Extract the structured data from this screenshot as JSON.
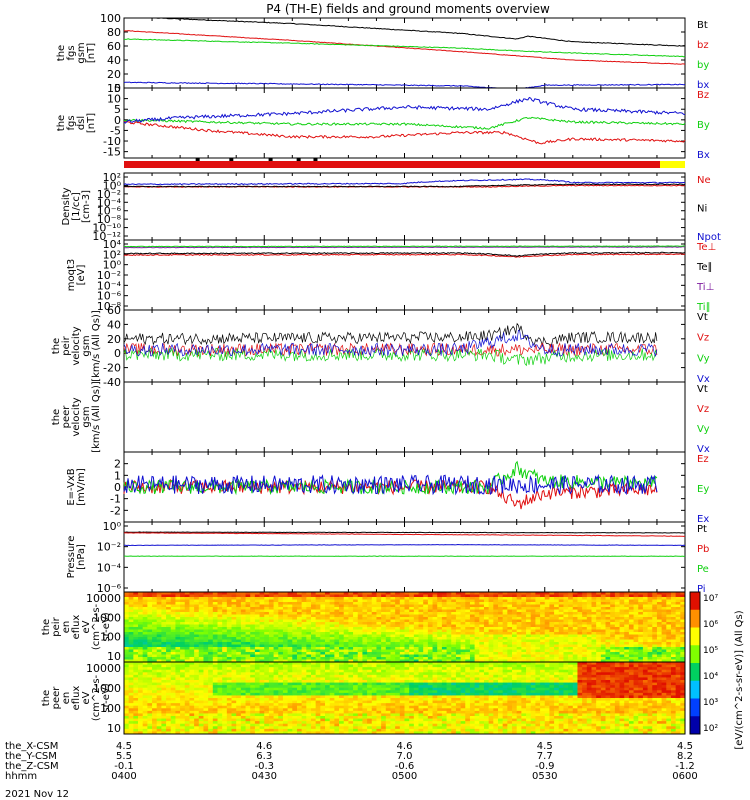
{
  "title": "P4 (TH-E) fields and ground moments overview",
  "date": "2021 Nov 12",
  "colors": {
    "black": "#000000",
    "red": "#e01010",
    "green": "#10d010",
    "blue": "#1010d0",
    "yellow": "#ffff00",
    "purple": "#8020a0",
    "white": "#ffffff"
  },
  "chart_data": [
    {
      "type": "line",
      "panel": "fgs_gsm_mag",
      "ylabel": [
        "the",
        "fgs",
        "gsm",
        "[nT]"
      ],
      "ylim": [
        0,
        100
      ],
      "yticks": [
        "100",
        "80",
        "60",
        "40",
        "20",
        "0"
      ],
      "series": [
        {
          "name": "Bt",
          "color": "black",
          "shape": [
            [
              0,
              102
            ],
            [
              0.3,
              92
            ],
            [
              0.6,
              78
            ],
            [
              0.7,
              70
            ],
            [
              0.72,
              74
            ],
            [
              0.8,
              66
            ],
            [
              1,
              60
            ]
          ],
          "noise": 0.5
        },
        {
          "name": "bz",
          "color": "red",
          "shape": [
            [
              0,
              82
            ],
            [
              0.3,
              68
            ],
            [
              0.6,
              52
            ],
            [
              0.7,
              46
            ],
            [
              0.8,
              40
            ],
            [
              1,
              34
            ]
          ],
          "noise": 0.4
        },
        {
          "name": "by",
          "color": "green",
          "shape": [
            [
              0,
              70
            ],
            [
              0.3,
              64
            ],
            [
              0.6,
              57
            ],
            [
              0.7,
              53
            ],
            [
              0.8,
              50
            ],
            [
              1,
              45
            ]
          ],
          "noise": 0.5
        },
        {
          "name": "bx",
          "color": "blue",
          "shape": [
            [
              0,
              8
            ],
            [
              0.4,
              5
            ],
            [
              0.6,
              3
            ],
            [
              0.7,
              -2
            ],
            [
              0.75,
              4
            ],
            [
              1,
              5
            ]
          ],
          "noise": 0.6
        }
      ]
    },
    {
      "type": "line",
      "panel": "fgs_dsl",
      "ylabel": [
        "the",
        "fgs",
        "dsl",
        "[nT]"
      ],
      "ylim": [
        -18,
        15
      ],
      "yticks": [
        "15",
        "10",
        "5",
        "0",
        "-5",
        "-10",
        "-15"
      ],
      "series": [
        {
          "name": "Bz",
          "color": "red",
          "shape": [
            [
              0,
              -1
            ],
            [
              0.15,
              -5
            ],
            [
              0.3,
              -8
            ],
            [
              0.45,
              -8
            ],
            [
              0.6,
              -6
            ],
            [
              0.68,
              -6
            ],
            [
              0.74,
              -11
            ],
            [
              0.8,
              -9
            ],
            [
              1,
              -10
            ]
          ],
          "noise": 0.6
        },
        {
          "name": "By",
          "color": "green",
          "shape": [
            [
              0,
              0
            ],
            [
              0.15,
              -1
            ],
            [
              0.3,
              -2
            ],
            [
              0.5,
              -2
            ],
            [
              0.65,
              -4
            ],
            [
              0.72,
              1
            ],
            [
              0.8,
              -1
            ],
            [
              1,
              -2
            ]
          ],
          "noise": 0.5
        },
        {
          "name": "Bx",
          "color": "blue",
          "shape": [
            [
              0,
              -1
            ],
            [
              0.1,
              1
            ],
            [
              0.3,
              3
            ],
            [
              0.5,
              6
            ],
            [
              0.65,
              5
            ],
            [
              0.72,
              10
            ],
            [
              0.8,
              5
            ],
            [
              1,
              3
            ]
          ],
          "noise": 0.8
        }
      ]
    },
    {
      "type": "line",
      "panel": "density",
      "ylabel": [
        "Density",
        "[1/cc]",
        "[cm-3]"
      ],
      "yscale": "log",
      "ylim": [
        1e-13,
        1000
      ],
      "yticks": [
        "10²",
        "10⁰",
        "10⁻²",
        "10⁻⁴",
        "10⁻⁶",
        "10⁻⁸",
        "10⁻¹⁰",
        "10⁻¹²"
      ],
      "series": [
        {
          "name": "Ne",
          "color": "red",
          "shape": [
            [
              0,
              0.5
            ],
            [
              0.65,
              0.5
            ],
            [
              0.8,
              1
            ],
            [
              1,
              1
            ]
          ],
          "noise": 0.2
        },
        {
          "name": "Ni",
          "color": "black",
          "shape": [
            [
              0,
              0.6
            ],
            [
              0.6,
              0.6
            ],
            [
              0.8,
              2
            ],
            [
              1,
              2
            ]
          ],
          "noise": 0.2
        },
        {
          "name": "Npot",
          "color": "blue",
          "shape": [
            [
              0,
              2
            ],
            [
              0.5,
              3
            ],
            [
              0.72,
              30
            ],
            [
              0.8,
              5
            ],
            [
              1,
              5
            ]
          ],
          "noise": 0.25
        }
      ]
    },
    {
      "type": "line",
      "panel": "temperature",
      "ylabel": [
        "moqt3",
        "[eV]"
      ],
      "yscale": "log",
      "ylim": [
        1e-09,
        100000.0
      ],
      "yticks": [
        "10⁴",
        "10²",
        "10⁰",
        "10⁻²",
        "10⁻⁴",
        "10⁻⁶",
        "10⁻⁸"
      ],
      "series": [
        {
          "name": "Te⊥",
          "color": "red",
          "shape": [
            [
              0,
              100
            ],
            [
              0.6,
              120
            ],
            [
              0.7,
              40
            ],
            [
              0.8,
              120
            ],
            [
              1,
              150
            ]
          ],
          "noise": 0.2
        },
        {
          "name": "Te∥",
          "color": "black",
          "shape": [
            [
              0,
              200
            ],
            [
              0.6,
              250
            ],
            [
              0.7,
              60
            ],
            [
              0.8,
              250
            ],
            [
              1,
              300
            ]
          ],
          "noise": 0.2
        },
        {
          "name": "Ti⊥",
          "color": "purple",
          "shape": [
            [
              0,
              3000
            ],
            [
              1,
              4000
            ]
          ],
          "noise": 0.1
        },
        {
          "name": "Ti∥",
          "color": "green",
          "shape": [
            [
              0,
              5000
            ],
            [
              1,
              6000
            ]
          ],
          "noise": 0.1
        }
      ]
    },
    {
      "type": "line",
      "panel": "peir_velocity",
      "ylabel": [
        "the",
        "peir",
        "velocity",
        "gsm",
        "[km/s (All Qs)]"
      ],
      "ylim": [
        -40,
        60
      ],
      "yticks": [
        "60",
        "40",
        "20",
        "0",
        "-20",
        "-40"
      ],
      "series": [
        {
          "name": "Vt",
          "color": "black",
          "shape": [
            [
              0,
              20
            ],
            [
              0.6,
              22
            ],
            [
              0.66,
              25
            ],
            [
              0.7,
              35
            ],
            [
              0.74,
              15
            ],
            [
              0.8,
              22
            ],
            [
              0.95,
              22
            ]
          ],
          "noise": 8,
          "end": 0.95
        },
        {
          "name": "Vz",
          "color": "red",
          "shape": [
            [
              0,
              5
            ],
            [
              0.95,
              5
            ]
          ],
          "noise": 9,
          "end": 0.95
        },
        {
          "name": "Vy",
          "color": "green",
          "shape": [
            [
              0,
              -2
            ],
            [
              0.65,
              -2
            ],
            [
              0.7,
              -10
            ],
            [
              0.8,
              -3
            ],
            [
              0.95,
              -2
            ]
          ],
          "noise": 9,
          "end": 0.95
        },
        {
          "name": "Vx",
          "color": "blue",
          "shape": [
            [
              0,
              5
            ],
            [
              0.6,
              5
            ],
            [
              0.7,
              25
            ],
            [
              0.75,
              5
            ],
            [
              0.95,
              5
            ]
          ],
          "noise": 9,
          "end": 0.95
        }
      ]
    },
    {
      "type": "line",
      "panel": "peer_velocity",
      "ylabel": [
        "the",
        "peer",
        "velocity",
        "gsm",
        "[km/s (All Qs)]"
      ],
      "ylim": [
        0,
        1
      ],
      "yticks": [],
      "series": [
        {
          "name": "Vt",
          "color": "black",
          "shape": [],
          "noise": 0
        },
        {
          "name": "Vz",
          "color": "red",
          "shape": [],
          "noise": 0
        },
        {
          "name": "Vy",
          "color": "green",
          "shape": [],
          "noise": 0
        },
        {
          "name": "Vx",
          "color": "blue",
          "shape": [],
          "noise": 0
        }
      ]
    },
    {
      "type": "line",
      "panel": "efield",
      "ylabel": [
        "E=-VxB",
        "[mV/m]"
      ],
      "ylim": [
        -3,
        3
      ],
      "yticks": [
        "2",
        "1",
        "0",
        "-1",
        "-2"
      ],
      "series": [
        {
          "name": "Ez",
          "color": "red",
          "shape": [
            [
              0,
              0
            ],
            [
              0.65,
              0
            ],
            [
              0.7,
              -1.5
            ],
            [
              0.75,
              -0.5
            ],
            [
              0.95,
              -0.2
            ]
          ],
          "noise": 0.6,
          "end": 0.95
        },
        {
          "name": "Ey",
          "color": "green",
          "shape": [
            [
              0,
              0
            ],
            [
              0.65,
              0
            ],
            [
              0.7,
              1.6
            ],
            [
              0.75,
              0.5
            ],
            [
              0.95,
              0.3
            ]
          ],
          "noise": 0.6,
          "end": 0.95
        },
        {
          "name": "Ex",
          "color": "blue",
          "shape": [
            [
              0,
              0.2
            ],
            [
              0.95,
              0.2
            ]
          ],
          "noise": 0.8,
          "end": 0.95
        }
      ]
    },
    {
      "type": "line",
      "panel": "pressure",
      "ylabel": [
        "Pressure",
        "[nPa]"
      ],
      "yscale": "log",
      "ylim": [
        1e-07,
        100
      ],
      "yticks": [
        "10⁰",
        "10⁻²",
        "10⁻⁴",
        "10⁻⁶"
      ],
      "series": [
        {
          "name": "Pt",
          "color": "black",
          "shape": [
            [
              0,
              5
            ],
            [
              1,
              4
            ]
          ],
          "noise": 0.05
        },
        {
          "name": "Pb",
          "color": "red",
          "shape": [
            [
              0,
              4
            ],
            [
              0.5,
              2.5
            ],
            [
              1,
              1.5
            ]
          ],
          "noise": 0.05
        },
        {
          "name": "Pe",
          "color": "green",
          "shape": [
            [
              0,
              0.004
            ],
            [
              1,
              0.004
            ]
          ],
          "noise": 0.05
        },
        {
          "name": "Pi",
          "color": "blue",
          "shape": [
            [
              0,
              0.1
            ],
            [
              0.6,
              0.12
            ],
            [
              1,
              0.1
            ]
          ],
          "noise": 0.05
        }
      ]
    },
    {
      "type": "heatmap",
      "panel": "peir_en_eflux",
      "ylabel": [
        "the",
        "peir",
        "en",
        "eflux",
        "eV",
        "(cm^2-s-",
        "sr-eV)"
      ],
      "yscale": "log",
      "ylim": [
        5,
        20000
      ],
      "yticks": [
        "10000",
        "1000",
        "100",
        "10"
      ]
    },
    {
      "type": "heatmap",
      "panel": "peer_en_eflux",
      "ylabel": [
        "the",
        "peer",
        "en",
        "eflux",
        "eV",
        "(cm^2-s-",
        "sr-eV)"
      ],
      "yscale": "log",
      "ylim": [
        5,
        20000
      ],
      "yticks": [
        "10000",
        "1000",
        "100",
        "10"
      ]
    }
  ],
  "colorbar": {
    "label": "[eV/(cm^2-s-sr-eV)] (All Qs)",
    "ticks": [
      "10⁷",
      "10⁶",
      "10⁵",
      "10⁴",
      "10³",
      "10²"
    ]
  },
  "xaxis": {
    "ticks": [
      "0400",
      "0430",
      "0500",
      "0530",
      "0600"
    ],
    "rows": [
      {
        "label": "the_X-CSM",
        "values": [
          "4.5",
          "4.6",
          "4.6",
          "4.5",
          "4.5"
        ]
      },
      {
        "label": "the_Y-CSM",
        "values": [
          "5.5",
          "6.3",
          "7.0",
          "7.7",
          "8.2"
        ]
      },
      {
        "label": "the_Z-CSM",
        "values": [
          "-0.1",
          "-0.3",
          "-0.6",
          "-0.9",
          "-1.2"
        ]
      },
      {
        "label": "hhmm",
        "values": [
          "0400",
          "0430",
          "0500",
          "0530",
          "0600"
        ]
      }
    ]
  }
}
